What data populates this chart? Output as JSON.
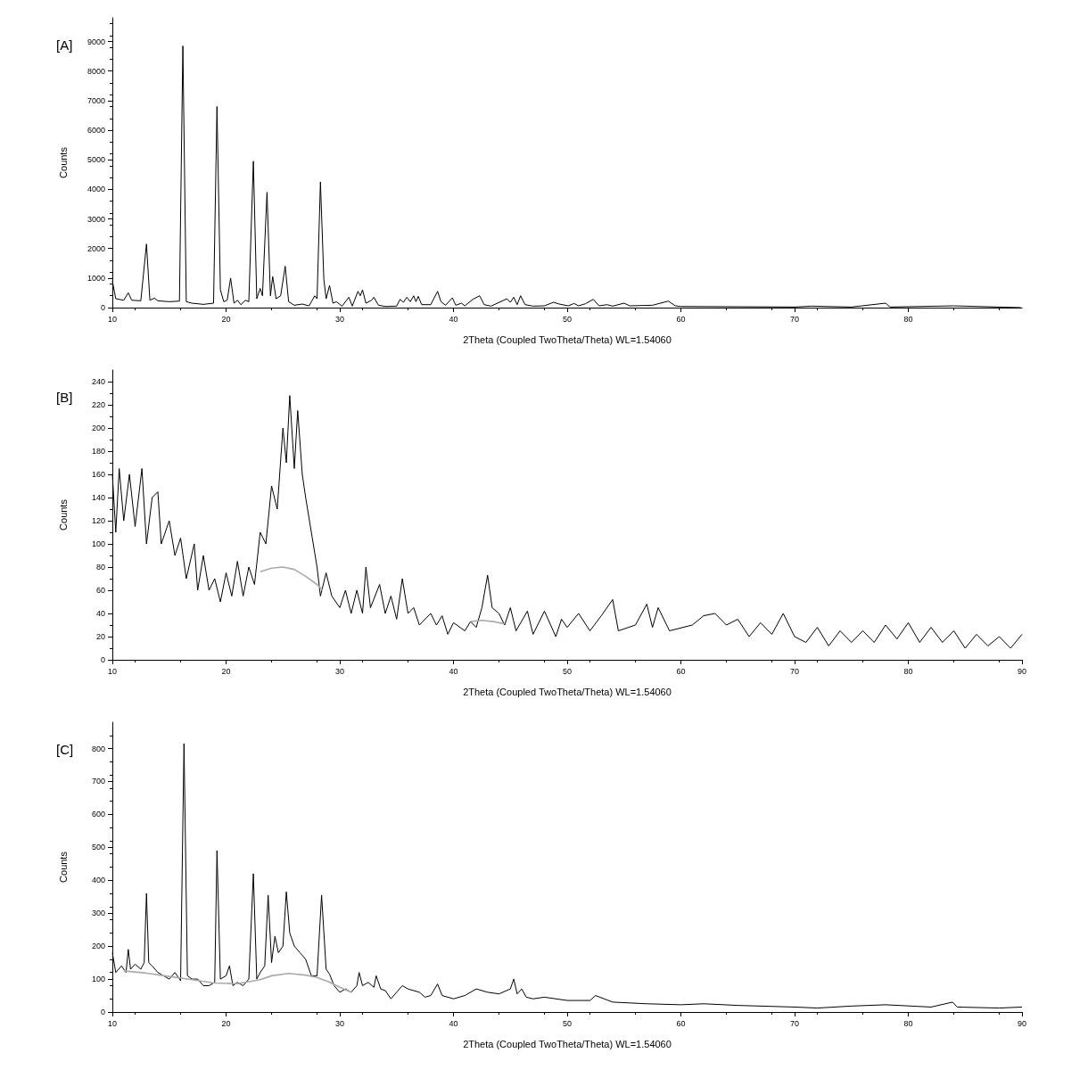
{
  "chart_data": [
    {
      "type": "line",
      "xlabel": "2Theta (Coupled TwoTheta/Theta) WL=1.54060",
      "ylabel": "Counts",
      "annotations": [
        "[A]"
      ],
      "xlim": [
        10,
        90
      ],
      "xticks": [
        10,
        20,
        30,
        40,
        50,
        60,
        70,
        80
      ],
      "ylim": [
        0,
        9800
      ],
      "yticks": [
        0,
        1000,
        2000,
        3000,
        4000,
        5000,
        6000,
        7000,
        8000,
        9000
      ],
      "grid": false,
      "marker": "none",
      "line_style": "solid",
      "series": [
        {
          "color": "#000000",
          "x": [
            10.0,
            10.3,
            11,
            11.4,
            11.7,
            12.5,
            13.0,
            13.3,
            13.7,
            14,
            15,
            15.9,
            16.2,
            16.5,
            17,
            18,
            18.9,
            19.2,
            19.5,
            19.8,
            20.1,
            20.4,
            20.7,
            21,
            21.3,
            21.7,
            22.0,
            22.4,
            22.7,
            23.0,
            23.2,
            23.6,
            23.9,
            24.1,
            24.4,
            24.8,
            25.2,
            25.5,
            26,
            26.7,
            27.3,
            27.8,
            28.0,
            28.3,
            28.6,
            28.8,
            29.1,
            29.4,
            29.7,
            30.2,
            30.8,
            31.1,
            31.6,
            31.8,
            32.0,
            32.3,
            32.8,
            33.0,
            33.4,
            34,
            35,
            35.3,
            35.6,
            35.9,
            36.2,
            36.5,
            36.7,
            36.9,
            37.2,
            38,
            38.6,
            38.9,
            39.3,
            39.9,
            40.2,
            40.7,
            41,
            41.7,
            42.3,
            42.7,
            43.3,
            44.7,
            45.0,
            45.3,
            45.6,
            45.9,
            46.3,
            47,
            48,
            48.8,
            49.3,
            50.1,
            50.6,
            51,
            51.6,
            52.3,
            52.8,
            53.5,
            54,
            55,
            55.5,
            57.5,
            58.9,
            59.5,
            60,
            65,
            70,
            71.5,
            75,
            78,
            78.4,
            84,
            89.9
          ],
          "values": [
            900,
            300,
            250,
            500,
            250,
            230,
            2150,
            250,
            320,
            230,
            200,
            220,
            8850,
            200,
            150,
            110,
            150,
            6800,
            600,
            200,
            250,
            1000,
            150,
            250,
            100,
            250,
            200,
            4950,
            300,
            650,
            400,
            3900,
            400,
            1050,
            300,
            400,
            1400,
            200,
            80,
            120,
            60,
            400,
            300,
            4250,
            950,
            300,
            750,
            150,
            200,
            50,
            350,
            50,
            550,
            400,
            600,
            150,
            250,
            350,
            80,
            40,
            50,
            280,
            180,
            350,
            200,
            400,
            200,
            380,
            100,
            100,
            550,
            200,
            80,
            330,
            80,
            150,
            60,
            280,
            400,
            100,
            50,
            300,
            180,
            350,
            100,
            400,
            100,
            50,
            60,
            180,
            120,
            60,
            140,
            60,
            130,
            280,
            60,
            100,
            50,
            150,
            60,
            80,
            220,
            60,
            40,
            30,
            20,
            50,
            20,
            150,
            20,
            60,
            0
          ]
        }
      ]
    },
    {
      "type": "line",
      "xlabel": "2Theta (Coupled TwoTheta/Theta) WL=1.54060",
      "ylabel": "Counts",
      "annotations": [
        "[B]"
      ],
      "xlim": [
        10,
        90
      ],
      "xticks": [
        10,
        20,
        30,
        40,
        50,
        60,
        70,
        80,
        90
      ],
      "ylim": [
        0,
        250
      ],
      "yticks": [
        0,
        20,
        40,
        60,
        80,
        100,
        120,
        140,
        160,
        180,
        200,
        220,
        240
      ],
      "grid": false,
      "marker": "none",
      "line_style": "solid",
      "series": [
        {
          "color": "#000000",
          "x": [
            10,
            10.3,
            10.6,
            11,
            11.5,
            12,
            12.6,
            13,
            13.5,
            14,
            14.3,
            15,
            15.5,
            16,
            16.5,
            17.2,
            17.5,
            18,
            18.5,
            19,
            19.5,
            20,
            20.5,
            21,
            21.5,
            22,
            22.5,
            23,
            23.5,
            24,
            24.5,
            25,
            25.3,
            25.6,
            26,
            26.3,
            26.7,
            27,
            27.5,
            28,
            28.3,
            28.8,
            29.3,
            30,
            30.5,
            31,
            31.5,
            32,
            32.3,
            32.7,
            33.5,
            34,
            34.5,
            35,
            35.5,
            36,
            36.5,
            37,
            38,
            38.5,
            39,
            39.5,
            40,
            41,
            41.5,
            42,
            42.5,
            43,
            43.4,
            44,
            44.5,
            45,
            45.5,
            46.5,
            47,
            48,
            49,
            49.5,
            50,
            51,
            52,
            53,
            54,
            54.5,
            56,
            57,
            57.5,
            58,
            59,
            61,
            62,
            63,
            64,
            65,
            66,
            67,
            68,
            69,
            70,
            71,
            72,
            73,
            74,
            75,
            76,
            77,
            78,
            79,
            80,
            81,
            82,
            83,
            84,
            85,
            86,
            87,
            88,
            89,
            90
          ],
          "values": [
            160,
            110,
            165,
            120,
            160,
            115,
            165,
            100,
            140,
            145,
            100,
            120,
            90,
            105,
            70,
            100,
            60,
            90,
            60,
            70,
            50,
            75,
            55,
            85,
            55,
            80,
            65,
            110,
            100,
            150,
            130,
            200,
            170,
            228,
            165,
            215,
            160,
            140,
            110,
            80,
            55,
            75,
            55,
            45,
            60,
            40,
            60,
            40,
            80,
            45,
            65,
            40,
            55,
            35,
            70,
            40,
            45,
            30,
            40,
            30,
            38,
            22,
            32,
            25,
            33,
            28,
            45,
            73,
            45,
            40,
            30,
            45,
            25,
            42,
            22,
            42,
            20,
            35,
            28,
            40,
            25,
            38,
            52,
            25,
            30,
            48,
            28,
            45,
            25,
            30,
            38,
            40,
            30,
            35,
            20,
            32,
            22,
            40,
            20,
            15,
            28,
            12,
            25,
            15,
            25,
            15,
            30,
            18,
            32,
            15,
            28,
            15,
            25,
            10,
            22,
            12,
            20,
            10,
            22
          ]
        },
        {
          "color": "#aaaaaa",
          "x": [
            23,
            24,
            25,
            26,
            27,
            28,
            28.5,
            30,
            41.5,
            42.5,
            43.5,
            44.5
          ],
          "values": [
            76,
            79,
            80,
            78,
            72,
            65,
            60,
            null,
            33,
            34,
            33,
            31
          ]
        }
      ]
    },
    {
      "type": "line",
      "xlabel": "2Theta (Coupled TwoTheta/Theta) WL=1.54060",
      "ylabel": "Counts",
      "annotations": [
        "[C]"
      ],
      "xlim": [
        10,
        90
      ],
      "xticks": [
        10,
        20,
        30,
        40,
        50,
        60,
        70,
        80,
        90
      ],
      "ylim": [
        0,
        880
      ],
      "yticks": [
        0,
        100,
        200,
        300,
        400,
        500,
        600,
        700,
        800
      ],
      "grid": false,
      "marker": "none",
      "line_style": "solid",
      "series": [
        {
          "color": "#000000",
          "x": [
            10,
            10.3,
            10.8,
            11.2,
            11.4,
            11.6,
            12,
            12.5,
            12.8,
            13.0,
            13.2,
            13.5,
            14,
            14.5,
            15,
            15.5,
            16,
            16.3,
            16.6,
            17,
            17.5,
            18,
            18.5,
            19,
            19.2,
            19.5,
            20,
            20.3,
            20.6,
            21,
            21.5,
            22,
            22.4,
            22.7,
            23,
            23.4,
            23.7,
            24,
            24.3,
            24.6,
            25,
            25.3,
            25.6,
            26,
            26.5,
            27,
            27.5,
            28,
            28.4,
            28.8,
            29.1,
            29.5,
            30,
            30.5,
            31,
            31.5,
            31.7,
            32,
            32.5,
            33,
            33.2,
            33.6,
            34,
            34.5,
            35,
            35.5,
            36,
            37,
            37.5,
            38,
            38.6,
            39,
            40,
            41,
            42,
            43,
            44,
            45,
            45.3,
            45.6,
            46,
            46.4,
            47,
            48,
            50,
            52,
            52.5,
            54,
            57,
            60,
            62,
            65,
            70,
            72,
            75,
            78,
            82,
            83.9,
            84.3,
            88,
            90
          ],
          "values": [
            180,
            120,
            140,
            120,
            190,
            130,
            145,
            130,
            150,
            360,
            150,
            140,
            120,
            110,
            100,
            120,
            95,
            815,
            110,
            100,
            100,
            80,
            80,
            90,
            490,
            100,
            110,
            140,
            80,
            90,
            80,
            100,
            420,
            100,
            120,
            140,
            355,
            150,
            230,
            180,
            200,
            365,
            240,
            200,
            180,
            160,
            110,
            110,
            355,
            130,
            115,
            80,
            60,
            70,
            60,
            80,
            120,
            80,
            90,
            75,
            110,
            70,
            65,
            40,
            60,
            80,
            70,
            60,
            45,
            50,
            85,
            50,
            40,
            50,
            70,
            60,
            55,
            70,
            100,
            55,
            70,
            45,
            40,
            45,
            35,
            35,
            50,
            30,
            25,
            22,
            25,
            20,
            15,
            12,
            18,
            22,
            15,
            30,
            15,
            12,
            15
          ]
        },
        {
          "color": "#aaaaaa",
          "x": [
            11,
            13,
            15,
            17,
            19,
            21,
            23,
            24,
            25.5,
            27,
            28,
            29,
            30,
            31
          ],
          "values": [
            125,
            118,
            108,
            98,
            88,
            86,
            98,
            110,
            117,
            112,
            105,
            92,
            75,
            60
          ]
        }
      ]
    }
  ]
}
